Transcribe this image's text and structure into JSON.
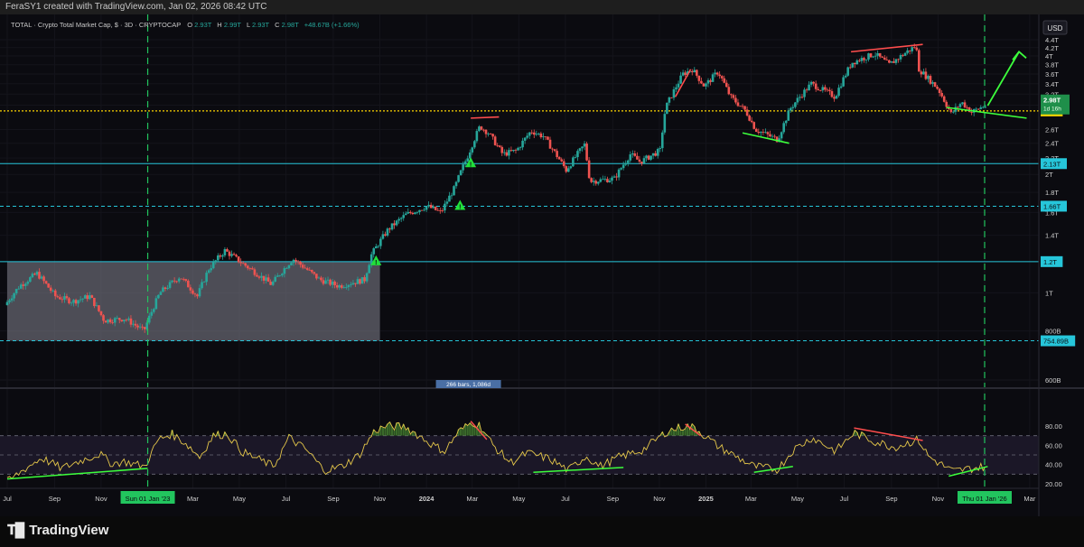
{
  "header": {
    "credit": "FeraSY1 created with TradingView.com, Jan 02, 2026 08:42 UTC"
  },
  "footer": {
    "brand": "TradingView",
    "logo_icon": "tradingview-logo-icon"
  },
  "chart_data": {
    "type": "candlestick",
    "symbol_line": {
      "title": "TOTAL · Crypto Total Market Cap, $ · 3D · CRYPTOCAP",
      "o_label": "O",
      "o": "2.93T",
      "h_label": "H",
      "h": "2.99T",
      "l_label": "L",
      "l": "2.93T",
      "c_label": "C",
      "c": "2.98T",
      "change": "+48.67B (+1.66%)"
    },
    "currency_button": "USD",
    "x_axis_labels": [
      "Jul",
      "Sep",
      "Nov",
      "Sun 01 Jan '23",
      "Mar",
      "May",
      "Jul",
      "Sep",
      "Nov",
      "2024",
      "Mar",
      "May",
      "Jul",
      "Sep",
      "Nov",
      "2025",
      "Mar",
      "May",
      "Jul",
      "Sep",
      "Nov",
      "Thu 01 Jan '26",
      "Mar"
    ],
    "y_axis_labels": [
      "4.4T",
      "4.2T",
      "4T",
      "3.8T",
      "3.6T",
      "3.4T",
      "3.2T",
      "3T",
      "2.6T",
      "2.4T",
      "2.2T",
      "2T",
      "1.8T",
      "1.6T",
      "1.4T",
      "1.2T",
      "1T",
      "800B",
      "600B"
    ],
    "price_path": [
      [
        "2022-07-01",
        0.93
      ],
      [
        "2022-07-20",
        1.04
      ],
      [
        "2022-08-12",
        1.12
      ],
      [
        "2022-09-05",
        0.98
      ],
      [
        "2022-09-28",
        0.95
      ],
      [
        "2022-10-20",
        0.98
      ],
      [
        "2022-11-08",
        0.85
      ],
      [
        "2022-12-05",
        0.86
      ],
      [
        "2022-12-30",
        0.8
      ],
      [
        "2023-01-20",
        1.0
      ],
      [
        "2023-02-15",
        1.1
      ],
      [
        "2023-03-10",
        0.98
      ],
      [
        "2023-03-25",
        1.15
      ],
      [
        "2023-04-15",
        1.28
      ],
      [
        "2023-05-10",
        1.18
      ],
      [
        "2023-06-15",
        1.05
      ],
      [
        "2023-07-13",
        1.22
      ],
      [
        "2023-08-17",
        1.08
      ],
      [
        "2023-09-11",
        1.04
      ],
      [
        "2023-10-15",
        1.08
      ],
      [
        "2023-10-24",
        1.25
      ],
      [
        "2023-11-15",
        1.45
      ],
      [
        "2023-12-08",
        1.58
      ],
      [
        "2024-01-05",
        1.66
      ],
      [
        "2024-01-23",
        1.6
      ],
      [
        "2024-02-10",
        1.85
      ],
      [
        "2024-02-28",
        2.25
      ],
      [
        "2024-03-14",
        2.65
      ],
      [
        "2024-03-25",
        2.55
      ],
      [
        "2024-04-13",
        2.25
      ],
      [
        "2024-05-01",
        2.3
      ],
      [
        "2024-05-20",
        2.58
      ],
      [
        "2024-06-05",
        2.5
      ],
      [
        "2024-07-05",
        2.05
      ],
      [
        "2024-07-29",
        2.38
      ],
      [
        "2024-08-05",
        1.92
      ],
      [
        "2024-09-06",
        1.95
      ],
      [
        "2024-09-27",
        2.25
      ],
      [
        "2024-10-10",
        2.15
      ],
      [
        "2024-11-05",
        2.3
      ],
      [
        "2024-11-12",
        2.95
      ],
      [
        "2024-12-05",
        3.6
      ],
      [
        "2024-12-17",
        3.7
      ],
      [
        "2025-01-02",
        3.35
      ],
      [
        "2025-01-20",
        3.65
      ],
      [
        "2025-02-05",
        3.15
      ],
      [
        "2025-02-25",
        2.9
      ],
      [
        "2025-03-10",
        2.6
      ],
      [
        "2025-04-08",
        2.45
      ],
      [
        "2025-04-25",
        2.95
      ],
      [
        "2025-05-22",
        3.4
      ],
      [
        "2025-06-22",
        3.15
      ],
      [
        "2025-07-14",
        3.85
      ],
      [
        "2025-08-13",
        4.05
      ],
      [
        "2025-09-01",
        3.8
      ],
      [
        "2025-10-06",
        4.25
      ],
      [
        "2025-10-10",
        3.7
      ],
      [
        "2025-11-04",
        3.3
      ],
      [
        "2025-11-21",
        2.85
      ],
      [
        "2025-12-05",
        3.05
      ],
      [
        "2025-12-18",
        2.88
      ],
      [
        "2026-01-02",
        2.98
      ]
    ],
    "horizontal_levels": [
      {
        "value": 2.13,
        "label": "2.13T",
        "style": "solid",
        "color": "#26c6da"
      },
      {
        "value": 1.66,
        "label": "1.66T",
        "style": "dashed",
        "color": "#26c6da"
      },
      {
        "value": 1.2,
        "label": "1.2T",
        "style": "solid",
        "color": "#26c6da"
      },
      {
        "value": 0.75489,
        "label": "754.89B",
        "style": "dashed",
        "color": "#26c6da"
      },
      {
        "value": 2.9,
        "label": "2.9T",
        "style": "dotted",
        "color": "#ffd600"
      }
    ],
    "last_price_label": "2.98T",
    "countdown_label": "1d 16h",
    "range_box": {
      "from": "2022-07-01",
      "to": "2023-11-01",
      "low": 0.75489,
      "high": 1.2
    },
    "vertical_markers": [
      "2023-01-01",
      "2026-01-01"
    ],
    "measure_label": "266 bars, 1,086d",
    "warnings": [
      [
        "2023-10-27",
        1.2
      ],
      [
        "2024-02-14",
        1.66
      ],
      [
        "2024-02-28",
        2.13
      ]
    ],
    "trendlines_price": [
      {
        "color": "#ff4d4d",
        "from": [
          "2024-02-28",
          2.78
        ],
        "to": [
          "2024-04-05",
          2.8
        ]
      },
      {
        "color": "#ff4d4d",
        "from": [
          "2024-11-22",
          3.15
        ],
        "to": [
          "2024-12-12",
          3.7
        ]
      },
      {
        "color": "#3cff3c",
        "from": [
          "2025-02-18",
          2.55
        ],
        "to": [
          "2025-04-20",
          2.4
        ]
      },
      {
        "color": "#ff4d4d",
        "from": [
          "2025-07-10",
          4.1
        ],
        "to": [
          "2025-10-12",
          4.28
        ]
      },
      {
        "color": "#3cff3c",
        "from": [
          "2025-11-12",
          2.96
        ],
        "to": [
          "2026-02-25",
          2.78
        ]
      }
    ],
    "projection_arrow": {
      "color": "#3cff3c",
      "from": [
        "2026-01-05",
        2.99
      ],
      "to": [
        "2026-02-15",
        4.1
      ]
    },
    "rsi": {
      "axis_labels": [
        "80.00",
        "60.00",
        "40.00",
        "20.00"
      ],
      "levels": [
        70,
        50,
        30
      ],
      "values": [
        [
          "2022-07-01",
          22
        ],
        [
          "2022-07-25",
          36
        ],
        [
          "2022-08-15",
          47
        ],
        [
          "2022-09-10",
          36
        ],
        [
          "2022-10-05",
          44
        ],
        [
          "2022-10-30",
          51
        ],
        [
          "2022-11-15",
          41
        ],
        [
          "2022-12-01",
          43
        ],
        [
          "2022-12-28",
          38
        ],
        [
          "2023-01-15",
          66
        ],
        [
          "2023-02-01",
          72
        ],
        [
          "2023-02-20",
          62
        ],
        [
          "2023-03-10",
          48
        ],
        [
          "2023-03-28",
          70
        ],
        [
          "2023-04-15",
          72
        ],
        [
          "2023-05-05",
          53
        ],
        [
          "2023-05-25",
          46
        ],
        [
          "2023-06-15",
          38
        ],
        [
          "2023-07-05",
          68
        ],
        [
          "2023-07-28",
          55
        ],
        [
          "2023-08-20",
          34
        ],
        [
          "2023-09-12",
          38
        ],
        [
          "2023-10-05",
          50
        ],
        [
          "2023-10-25",
          75
        ],
        [
          "2023-11-10",
          80
        ],
        [
          "2023-12-05",
          79
        ],
        [
          "2024-01-10",
          60
        ],
        [
          "2024-01-25",
          54
        ],
        [
          "2024-02-12",
          74
        ],
        [
          "2024-03-01",
          84
        ],
        [
          "2024-03-12",
          80
        ],
        [
          "2024-03-28",
          60
        ],
        [
          "2024-04-20",
          42
        ],
        [
          "2024-05-12",
          52
        ],
        [
          "2024-06-10",
          46
        ],
        [
          "2024-07-05",
          34
        ],
        [
          "2024-07-28",
          49
        ],
        [
          "2024-08-15",
          38
        ],
        [
          "2024-09-10",
          48
        ],
        [
          "2024-10-10",
          55
        ],
        [
          "2024-11-12",
          75
        ],
        [
          "2024-12-05",
          80
        ],
        [
          "2024-12-18",
          78
        ],
        [
          "2025-01-15",
          60
        ],
        [
          "2025-02-10",
          48
        ],
        [
          "2025-03-05",
          38
        ],
        [
          "2025-04-05",
          35
        ],
        [
          "2025-04-25",
          55
        ],
        [
          "2025-05-20",
          68
        ],
        [
          "2025-06-20",
          54
        ],
        [
          "2025-07-14",
          73
        ],
        [
          "2025-08-10",
          64
        ],
        [
          "2025-09-05",
          58
        ],
        [
          "2025-10-06",
          66
        ],
        [
          "2025-10-20",
          48
        ],
        [
          "2025-11-20",
          33
        ],
        [
          "2025-12-15",
          36
        ],
        [
          "2026-01-02",
          38
        ]
      ],
      "trendlines": [
        {
          "color": "#3cff3c",
          "from": [
            "2022-07-01",
            25
          ],
          "to": [
            "2023-01-01",
            36
          ]
        },
        {
          "color": "#ff4d4d",
          "from": [
            "2024-02-28",
            85
          ],
          "to": [
            "2024-03-20",
            66
          ]
        },
        {
          "color": "#3cff3c",
          "from": [
            "2024-05-20",
            32
          ],
          "to": [
            "2024-09-15",
            37
          ]
        },
        {
          "color": "#ff4d4d",
          "from": [
            "2024-12-05",
            82
          ],
          "to": [
            "2024-12-25",
            70
          ]
        },
        {
          "color": "#3cff3c",
          "from": [
            "2025-03-05",
            32
          ],
          "to": [
            "2025-04-25",
            38
          ]
        },
        {
          "color": "#ff4d4d",
          "from": [
            "2025-07-14",
            78
          ],
          "to": [
            "2025-10-12",
            65
          ]
        },
        {
          "color": "#3cff3c",
          "from": [
            "2025-11-15",
            28
          ],
          "to": [
            "2026-01-05",
            38
          ]
        }
      ]
    },
    "colors": {
      "up": "#26a69a",
      "down": "#ef5350",
      "rsi_line": "#e6c84a",
      "panel_bg": "#0b0b10",
      "rsi_band": "#1b1727",
      "grid": "#14141b"
    }
  }
}
